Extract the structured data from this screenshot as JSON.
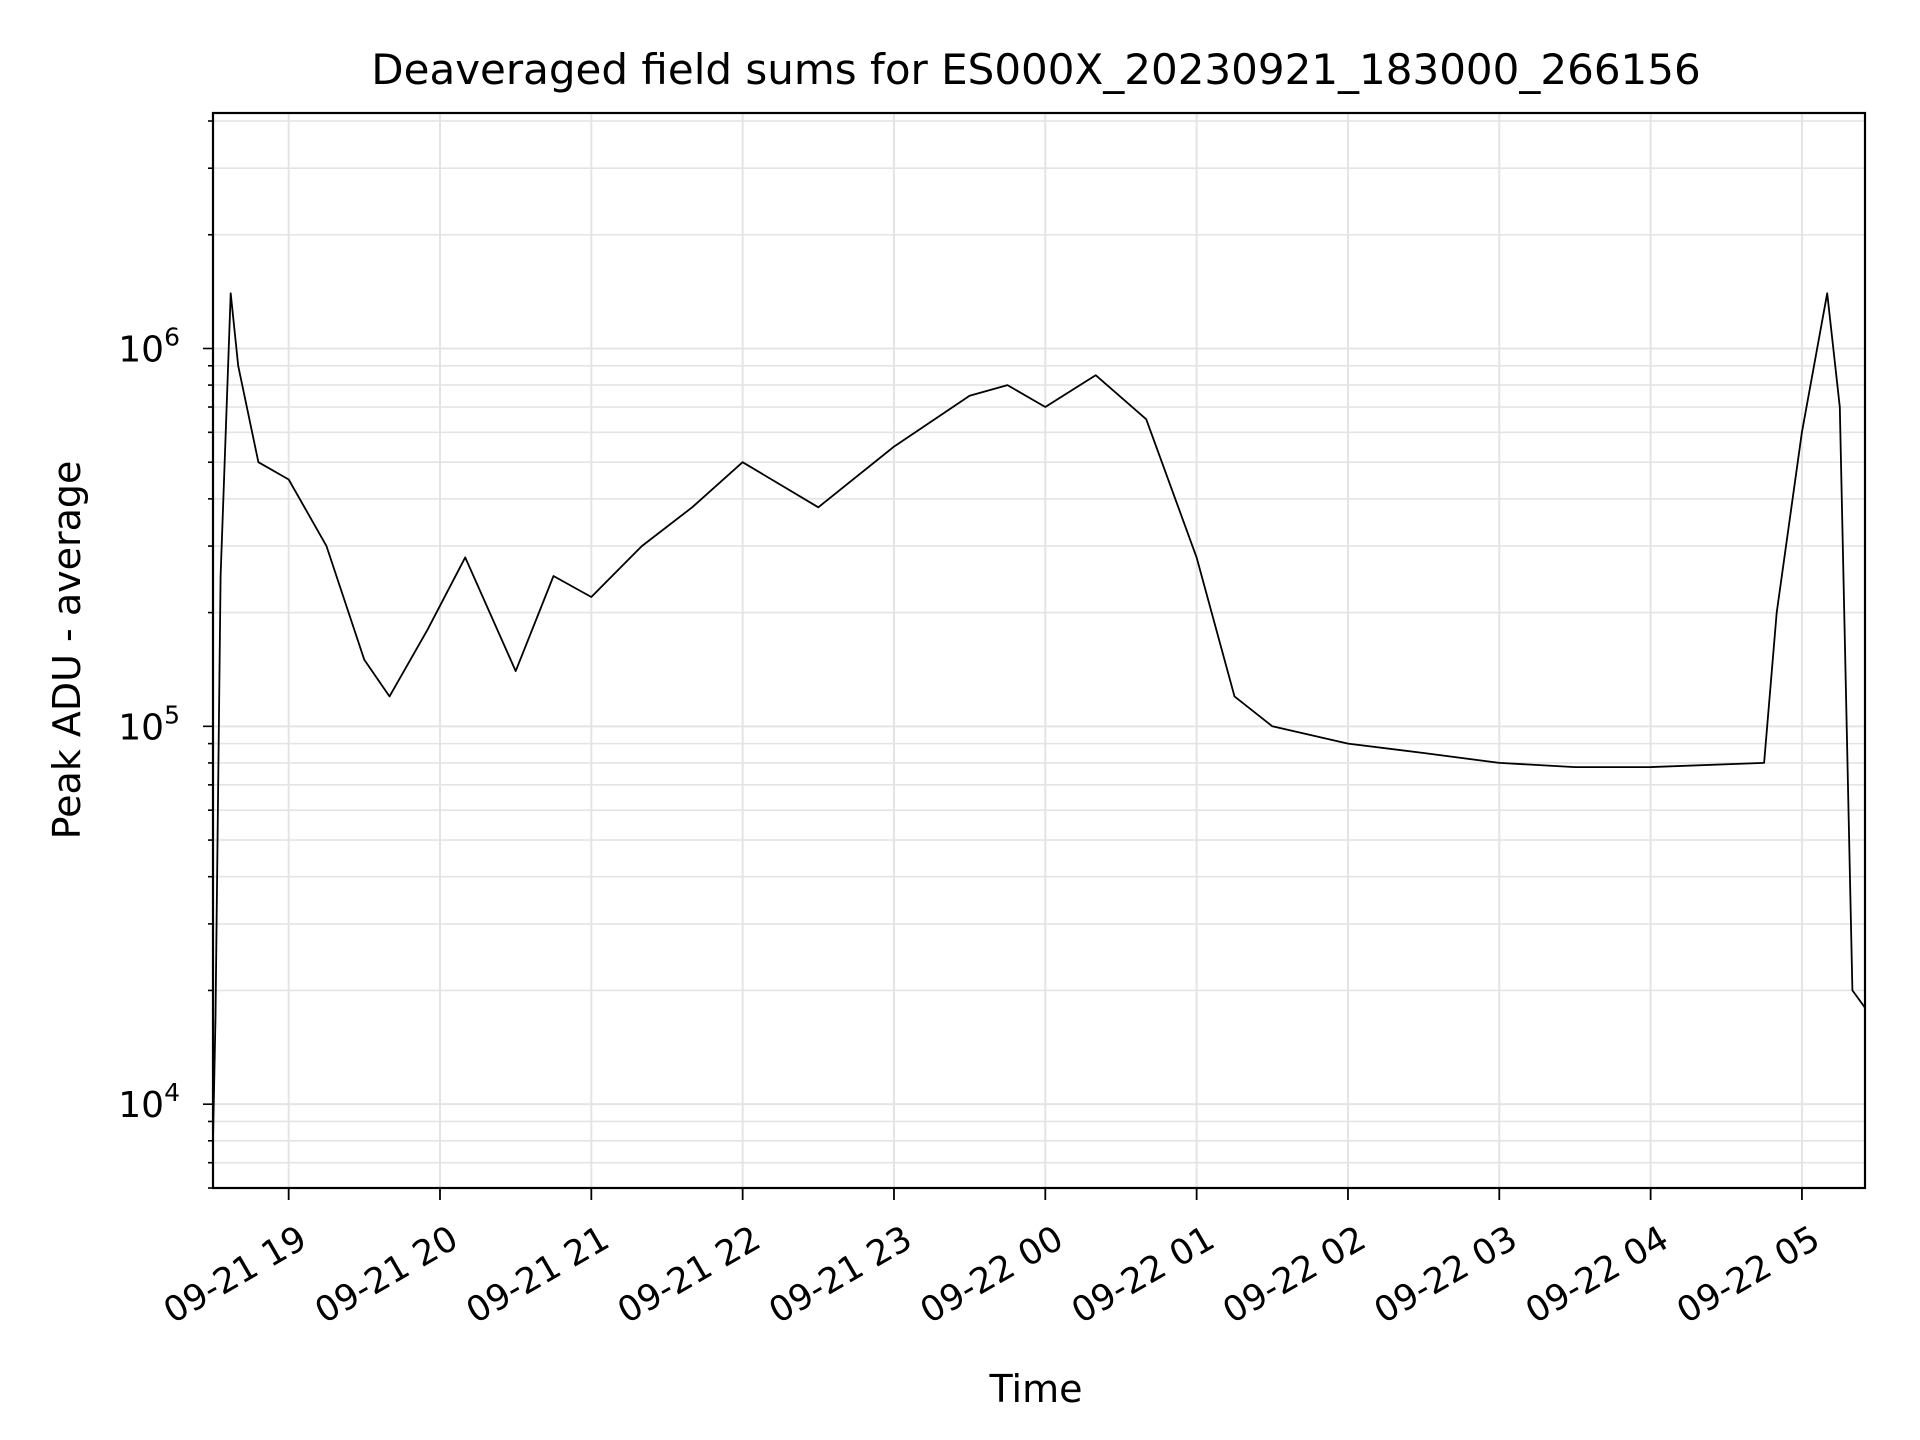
{
  "chart_data": {
    "type": "line",
    "title": "Deaveraged field sums for ES000X_20230921_183000_266156",
    "xlabel": "Time",
    "ylabel": "Peak ADU - average",
    "xlim": [
      "2023-09-21 18:30",
      "2023-09-22 05:25"
    ],
    "ylim": [
      6000,
      4200000
    ],
    "yscale": "log",
    "grid": true,
    "x_ticks": [
      {
        "t": "2023-09-21 19:00",
        "label": "09-21 19"
      },
      {
        "t": "2023-09-21 20:00",
        "label": "09-21 20"
      },
      {
        "t": "2023-09-21 21:00",
        "label": "09-21 21"
      },
      {
        "t": "2023-09-21 22:00",
        "label": "09-21 22"
      },
      {
        "t": "2023-09-21 23:00",
        "label": "09-21 23"
      },
      {
        "t": "2023-09-22 00:00",
        "label": "09-22 00"
      },
      {
        "t": "2023-09-22 01:00",
        "label": "09-22 01"
      },
      {
        "t": "2023-09-22 02:00",
        "label": "09-22 02"
      },
      {
        "t": "2023-09-22 03:00",
        "label": "09-22 03"
      },
      {
        "t": "2023-09-22 04:00",
        "label": "09-22 04"
      },
      {
        "t": "2023-09-22 05:00",
        "label": "09-22 05"
      }
    ],
    "y_ticks": [
      {
        "value": 10000,
        "base": "10",
        "exp": "4"
      },
      {
        "value": 100000,
        "base": "10",
        "exp": "5"
      },
      {
        "value": 1000000,
        "base": "10",
        "exp": "6"
      }
    ],
    "series": [
      {
        "color": "#000000",
        "points": [
          [
            "2023-09-21 18:30",
            8000
          ],
          [
            "2023-09-21 18:31",
            17000
          ],
          [
            "2023-09-21 18:33",
            250000
          ],
          [
            "2023-09-21 18:37",
            1400000
          ],
          [
            "2023-09-21 18:40",
            900000
          ],
          [
            "2023-09-21 18:48",
            500000
          ],
          [
            "2023-09-21 19:00",
            450000
          ],
          [
            "2023-09-21 19:15",
            300000
          ],
          [
            "2023-09-21 19:30",
            150000
          ],
          [
            "2023-09-21 19:40",
            120000
          ],
          [
            "2023-09-21 19:55",
            180000
          ],
          [
            "2023-09-21 20:10",
            280000
          ],
          [
            "2023-09-21 20:30",
            140000
          ],
          [
            "2023-09-21 20:45",
            250000
          ],
          [
            "2023-09-21 21:00",
            220000
          ],
          [
            "2023-09-21 21:20",
            300000
          ],
          [
            "2023-09-21 21:40",
            380000
          ],
          [
            "2023-09-21 22:00",
            500000
          ],
          [
            "2023-09-21 22:30",
            380000
          ],
          [
            "2023-09-21 23:00",
            550000
          ],
          [
            "2023-09-21 23:30",
            750000
          ],
          [
            "2023-09-21 23:45",
            800000
          ],
          [
            "2023-09-22 00:00",
            700000
          ],
          [
            "2023-09-22 00:20",
            850000
          ],
          [
            "2023-09-22 00:40",
            650000
          ],
          [
            "2023-09-22 01:00",
            280000
          ],
          [
            "2023-09-22 01:15",
            120000
          ],
          [
            "2023-09-22 01:30",
            100000
          ],
          [
            "2023-09-22 02:00",
            90000
          ],
          [
            "2023-09-22 02:30",
            85000
          ],
          [
            "2023-09-22 03:00",
            80000
          ],
          [
            "2023-09-22 03:30",
            78000
          ],
          [
            "2023-09-22 04:00",
            78000
          ],
          [
            "2023-09-22 04:45",
            80000
          ],
          [
            "2023-09-22 04:50",
            200000
          ],
          [
            "2023-09-22 05:00",
            600000
          ],
          [
            "2023-09-22 05:10",
            1400000
          ],
          [
            "2023-09-22 05:15",
            700000
          ],
          [
            "2023-09-22 05:20",
            20000
          ],
          [
            "2023-09-22 05:25",
            18000
          ]
        ]
      }
    ]
  }
}
